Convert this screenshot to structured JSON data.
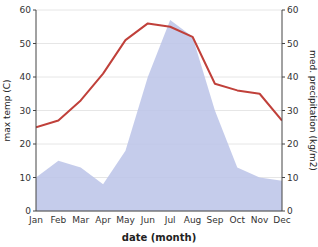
{
  "chart_data": {
    "type": "line",
    "xlabel": "date (month)",
    "ylabel": "max temp (C)",
    "y2label": "med. precipitation (kg/m2)",
    "categories": [
      "Jan",
      "Feb",
      "Mar",
      "Apr",
      "May",
      "Jun",
      "Jul",
      "Aug",
      "Sep",
      "Oct",
      "Nov",
      "Dec"
    ],
    "series": [
      {
        "type": "area",
        "axis": "y2",
        "color": "#bbc3e8",
        "values": [
          10,
          15,
          13,
          8,
          18,
          40,
          57,
          52,
          30,
          13,
          10,
          9
        ]
      },
      {
        "type": "line",
        "color": "#c0403a",
        "values": [
          25,
          27,
          33,
          41,
          51,
          56,
          55,
          52,
          38,
          36,
          35,
          27
        ]
      }
    ],
    "ylim": [
      0,
      60
    ],
    "yticks": [
      0,
      10,
      20,
      30,
      40,
      50,
      60
    ],
    "y2lim": [
      0,
      60
    ],
    "y2ticks": [
      0,
      10,
      20,
      30,
      40,
      50,
      60
    ],
    "grid": true
  }
}
